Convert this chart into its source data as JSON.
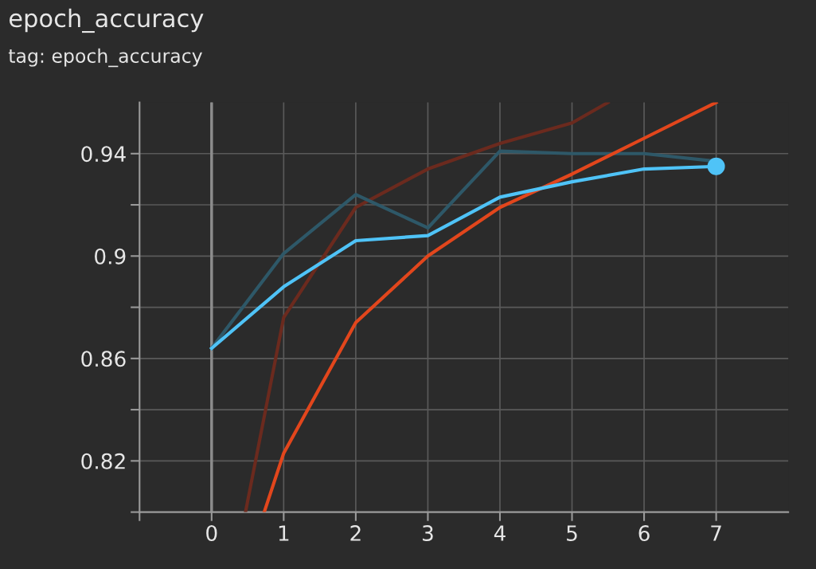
{
  "chart_data": {
    "type": "line",
    "title": "epoch_accuracy",
    "subtitle": "tag: epoch_accuracy",
    "xlim": [
      -1,
      8
    ],
    "xticks": [
      {
        "value": -1,
        "label": null
      },
      0,
      1,
      2,
      3,
      4,
      5,
      6,
      7
    ],
    "ylim": [
      0.8,
      0.96
    ],
    "yticks": [
      {
        "value": 0.8,
        "label": null
      },
      0.82,
      {
        "value": 0.84,
        "label": null
      },
      0.86,
      {
        "value": 0.88,
        "label": null
      },
      0.9,
      {
        "value": 0.92,
        "label": null
      },
      0.94
    ],
    "grid": true,
    "legend": false,
    "ref_lines": [
      {
        "axis": "x",
        "value": 0,
        "color": "#8c8c8c"
      }
    ],
    "series": [
      {
        "color": "#6b2a1e",
        "x": [
          0.47,
          1,
          2,
          3,
          4,
          5,
          5.5
        ],
        "values": [
          0.8,
          0.876,
          0.919,
          0.934,
          0.944,
          0.952,
          0.96
        ]
      },
      {
        "color": "#2e5868",
        "x": [
          0,
          1,
          2,
          3,
          4,
          5,
          6,
          7
        ],
        "values": [
          0.864,
          0.901,
          0.924,
          0.911,
          0.941,
          0.94,
          0.94,
          0.937
        ]
      },
      {
        "color": "#e2461c",
        "x": [
          0.73,
          1,
          2,
          3,
          4,
          5,
          6,
          7
        ],
        "values": [
          0.8,
          0.823,
          0.874,
          0.9,
          0.919,
          0.932,
          0.946,
          0.96
        ]
      },
      {
        "color": "#4fc3f7",
        "x": [
          0,
          1,
          2,
          3,
          4,
          5,
          6,
          7
        ],
        "values": [
          0.864,
          0.888,
          0.906,
          0.908,
          0.923,
          0.929,
          0.934,
          0.935
        ]
      },
      {
        "type": "scatter",
        "color": "#4fc3f7",
        "marker": "circle",
        "x": [
          7
        ],
        "values": [
          0.935
        ]
      }
    ]
  }
}
